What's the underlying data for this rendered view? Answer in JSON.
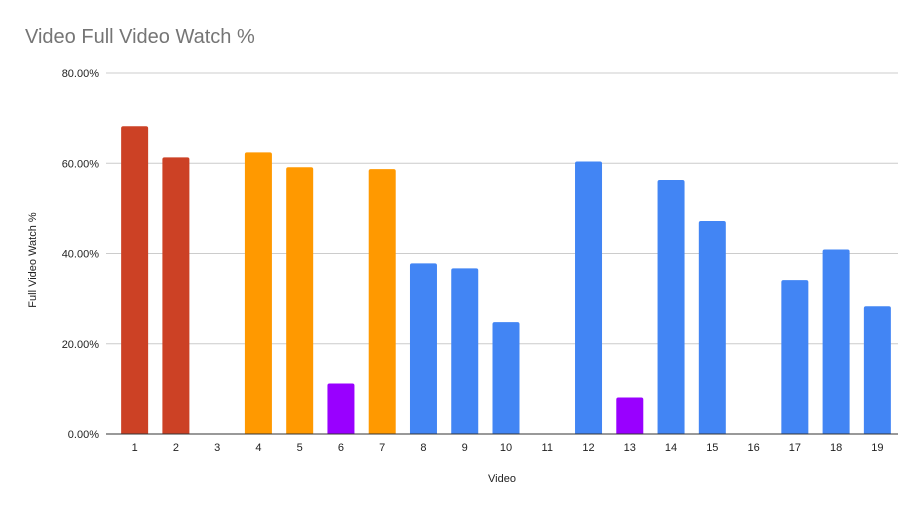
{
  "chart_data": {
    "type": "bar",
    "title": "Video Full Video Watch %",
    "xlabel": "Video",
    "ylabel": "Full Video Watch %",
    "categories": [
      "1",
      "2",
      "3",
      "4",
      "5",
      "6",
      "7",
      "8",
      "9",
      "10",
      "11",
      "12",
      "13",
      "14",
      "15",
      "16",
      "17",
      "18",
      "19"
    ],
    "values": [
      0.682,
      0.613,
      0,
      0.624,
      0.591,
      0.112,
      0.587,
      0.378,
      0.367,
      0.248,
      0,
      0.604,
      0.081,
      0.563,
      0.472,
      0,
      0.341,
      0.409,
      0.283
    ],
    "colors": [
      "#cc4125",
      "#cc4125",
      "#4285f4",
      "#ff9900",
      "#ff9900",
      "#9900ff",
      "#ff9900",
      "#4285f4",
      "#4285f4",
      "#4285f4",
      "#4285f4",
      "#4285f4",
      "#9900ff",
      "#4285f4",
      "#4285f4",
      "#4285f4",
      "#4285f4",
      "#4285f4",
      "#4285f4"
    ],
    "ylim": [
      0,
      0.8
    ],
    "yticks": [
      0,
      0.2,
      0.4,
      0.6,
      0.8
    ],
    "ytick_labels": [
      "0.00%",
      "20.00%",
      "40.00%",
      "60.00%",
      "80.00%"
    ],
    "grid": true,
    "legend": "none"
  }
}
